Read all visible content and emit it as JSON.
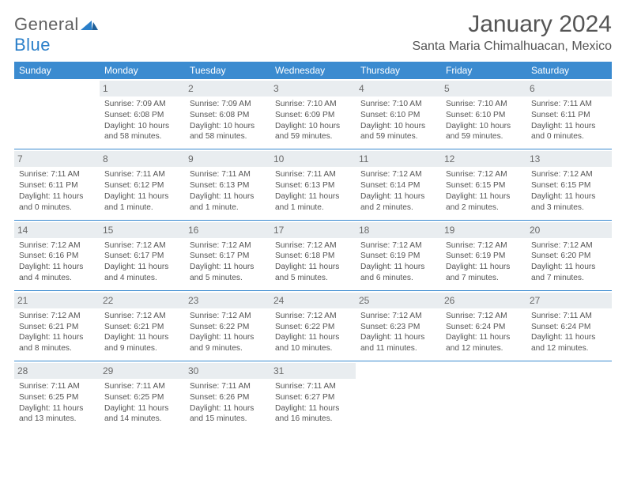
{
  "logo": {
    "word1": "General",
    "word2": "Blue"
  },
  "title": "January 2024",
  "location": "Santa Maria Chimalhuacan, Mexico",
  "colors": {
    "header_bg": "#3b8bd0",
    "header_text": "#ffffff",
    "daynum_bg": "#e9edf0",
    "rule": "#3b8bd0"
  },
  "weekdays": [
    "Sunday",
    "Monday",
    "Tuesday",
    "Wednesday",
    "Thursday",
    "Friday",
    "Saturday"
  ],
  "weeks": [
    [
      null,
      {
        "n": "1",
        "sr": "Sunrise: 7:09 AM",
        "ss": "Sunset: 6:08 PM",
        "d1": "Daylight: 10 hours",
        "d2": "and 58 minutes."
      },
      {
        "n": "2",
        "sr": "Sunrise: 7:09 AM",
        "ss": "Sunset: 6:08 PM",
        "d1": "Daylight: 10 hours",
        "d2": "and 58 minutes."
      },
      {
        "n": "3",
        "sr": "Sunrise: 7:10 AM",
        "ss": "Sunset: 6:09 PM",
        "d1": "Daylight: 10 hours",
        "d2": "and 59 minutes."
      },
      {
        "n": "4",
        "sr": "Sunrise: 7:10 AM",
        "ss": "Sunset: 6:10 PM",
        "d1": "Daylight: 10 hours",
        "d2": "and 59 minutes."
      },
      {
        "n": "5",
        "sr": "Sunrise: 7:10 AM",
        "ss": "Sunset: 6:10 PM",
        "d1": "Daylight: 10 hours",
        "d2": "and 59 minutes."
      },
      {
        "n": "6",
        "sr": "Sunrise: 7:11 AM",
        "ss": "Sunset: 6:11 PM",
        "d1": "Daylight: 11 hours",
        "d2": "and 0 minutes."
      }
    ],
    [
      {
        "n": "7",
        "sr": "Sunrise: 7:11 AM",
        "ss": "Sunset: 6:11 PM",
        "d1": "Daylight: 11 hours",
        "d2": "and 0 minutes."
      },
      {
        "n": "8",
        "sr": "Sunrise: 7:11 AM",
        "ss": "Sunset: 6:12 PM",
        "d1": "Daylight: 11 hours",
        "d2": "and 1 minute."
      },
      {
        "n": "9",
        "sr": "Sunrise: 7:11 AM",
        "ss": "Sunset: 6:13 PM",
        "d1": "Daylight: 11 hours",
        "d2": "and 1 minute."
      },
      {
        "n": "10",
        "sr": "Sunrise: 7:11 AM",
        "ss": "Sunset: 6:13 PM",
        "d1": "Daylight: 11 hours",
        "d2": "and 1 minute."
      },
      {
        "n": "11",
        "sr": "Sunrise: 7:12 AM",
        "ss": "Sunset: 6:14 PM",
        "d1": "Daylight: 11 hours",
        "d2": "and 2 minutes."
      },
      {
        "n": "12",
        "sr": "Sunrise: 7:12 AM",
        "ss": "Sunset: 6:15 PM",
        "d1": "Daylight: 11 hours",
        "d2": "and 2 minutes."
      },
      {
        "n": "13",
        "sr": "Sunrise: 7:12 AM",
        "ss": "Sunset: 6:15 PM",
        "d1": "Daylight: 11 hours",
        "d2": "and 3 minutes."
      }
    ],
    [
      {
        "n": "14",
        "sr": "Sunrise: 7:12 AM",
        "ss": "Sunset: 6:16 PM",
        "d1": "Daylight: 11 hours",
        "d2": "and 4 minutes."
      },
      {
        "n": "15",
        "sr": "Sunrise: 7:12 AM",
        "ss": "Sunset: 6:17 PM",
        "d1": "Daylight: 11 hours",
        "d2": "and 4 minutes."
      },
      {
        "n": "16",
        "sr": "Sunrise: 7:12 AM",
        "ss": "Sunset: 6:17 PM",
        "d1": "Daylight: 11 hours",
        "d2": "and 5 minutes."
      },
      {
        "n": "17",
        "sr": "Sunrise: 7:12 AM",
        "ss": "Sunset: 6:18 PM",
        "d1": "Daylight: 11 hours",
        "d2": "and 5 minutes."
      },
      {
        "n": "18",
        "sr": "Sunrise: 7:12 AM",
        "ss": "Sunset: 6:19 PM",
        "d1": "Daylight: 11 hours",
        "d2": "and 6 minutes."
      },
      {
        "n": "19",
        "sr": "Sunrise: 7:12 AM",
        "ss": "Sunset: 6:19 PM",
        "d1": "Daylight: 11 hours",
        "d2": "and 7 minutes."
      },
      {
        "n": "20",
        "sr": "Sunrise: 7:12 AM",
        "ss": "Sunset: 6:20 PM",
        "d1": "Daylight: 11 hours",
        "d2": "and 7 minutes."
      }
    ],
    [
      {
        "n": "21",
        "sr": "Sunrise: 7:12 AM",
        "ss": "Sunset: 6:21 PM",
        "d1": "Daylight: 11 hours",
        "d2": "and 8 minutes."
      },
      {
        "n": "22",
        "sr": "Sunrise: 7:12 AM",
        "ss": "Sunset: 6:21 PM",
        "d1": "Daylight: 11 hours",
        "d2": "and 9 minutes."
      },
      {
        "n": "23",
        "sr": "Sunrise: 7:12 AM",
        "ss": "Sunset: 6:22 PM",
        "d1": "Daylight: 11 hours",
        "d2": "and 9 minutes."
      },
      {
        "n": "24",
        "sr": "Sunrise: 7:12 AM",
        "ss": "Sunset: 6:22 PM",
        "d1": "Daylight: 11 hours",
        "d2": "and 10 minutes."
      },
      {
        "n": "25",
        "sr": "Sunrise: 7:12 AM",
        "ss": "Sunset: 6:23 PM",
        "d1": "Daylight: 11 hours",
        "d2": "and 11 minutes."
      },
      {
        "n": "26",
        "sr": "Sunrise: 7:12 AM",
        "ss": "Sunset: 6:24 PM",
        "d1": "Daylight: 11 hours",
        "d2": "and 12 minutes."
      },
      {
        "n": "27",
        "sr": "Sunrise: 7:11 AM",
        "ss": "Sunset: 6:24 PM",
        "d1": "Daylight: 11 hours",
        "d2": "and 12 minutes."
      }
    ],
    [
      {
        "n": "28",
        "sr": "Sunrise: 7:11 AM",
        "ss": "Sunset: 6:25 PM",
        "d1": "Daylight: 11 hours",
        "d2": "and 13 minutes."
      },
      {
        "n": "29",
        "sr": "Sunrise: 7:11 AM",
        "ss": "Sunset: 6:25 PM",
        "d1": "Daylight: 11 hours",
        "d2": "and 14 minutes."
      },
      {
        "n": "30",
        "sr": "Sunrise: 7:11 AM",
        "ss": "Sunset: 6:26 PM",
        "d1": "Daylight: 11 hours",
        "d2": "and 15 minutes."
      },
      {
        "n": "31",
        "sr": "Sunrise: 7:11 AM",
        "ss": "Sunset: 6:27 PM",
        "d1": "Daylight: 11 hours",
        "d2": "and 16 minutes."
      },
      null,
      null,
      null
    ]
  ]
}
